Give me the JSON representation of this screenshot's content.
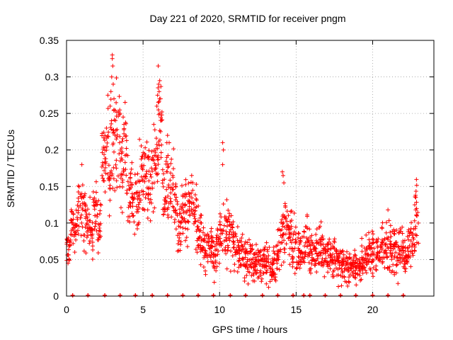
{
  "chart_data": {
    "type": "scatter",
    "title": "Day 221 of 2020, SRMTID for receiver pngm",
    "xlabel": "GPS time / hours",
    "ylabel": "SRMTID / TECUs",
    "xlim": [
      0,
      24
    ],
    "ylim": [
      0,
      0.35
    ],
    "grid": true,
    "marker": "+",
    "color": "#ff0000",
    "xticks": [
      {
        "value": 0,
        "label": "0"
      },
      {
        "value": 5,
        "label": "5"
      },
      {
        "value": 10,
        "label": "10"
      },
      {
        "value": 15,
        "label": "15"
      },
      {
        "value": 20,
        "label": "20"
      }
    ],
    "yticks": [
      {
        "value": 0,
        "label": "0"
      },
      {
        "value": 0.05,
        "label": "0.05"
      },
      {
        "value": 0.1,
        "label": "0.1"
      },
      {
        "value": 0.15,
        "label": "0.15"
      },
      {
        "value": 0.2,
        "label": "0.2"
      },
      {
        "value": 0.25,
        "label": "0.25"
      },
      {
        "value": 0.3,
        "label": "0.3"
      },
      {
        "value": 0.35,
        "label": "0.35"
      }
    ],
    "zero_markers_x": [
      0.4,
      1.4,
      2.5,
      3.5,
      4.5,
      5.6,
      6.6,
      7.6,
      8.6,
      9.6,
      10.7,
      11.7,
      12.8,
      13.8,
      14.8,
      15.5,
      15.9,
      16.9,
      17.9,
      18.9,
      20.0,
      21.0,
      22.0
    ],
    "profile": [
      [
        0.0,
        0.07,
        0.02
      ],
      [
        0.25,
        0.1,
        0.025
      ],
      [
        0.5,
        0.095,
        0.02
      ],
      [
        0.75,
        0.125,
        0.03
      ],
      [
        1.0,
        0.115,
        0.035
      ],
      [
        1.25,
        0.09,
        0.03
      ],
      [
        1.5,
        0.09,
        0.03
      ],
      [
        1.75,
        0.125,
        0.025
      ],
      [
        2.0,
        0.1,
        0.025
      ],
      [
        2.25,
        0.18,
        0.04
      ],
      [
        2.5,
        0.2,
        0.045
      ],
      [
        2.75,
        0.19,
        0.05
      ],
      [
        3.0,
        0.22,
        0.05
      ],
      [
        3.25,
        0.21,
        0.05
      ],
      [
        3.5,
        0.17,
        0.04
      ],
      [
        3.75,
        0.2,
        0.035
      ],
      [
        4.0,
        0.14,
        0.035
      ],
      [
        4.25,
        0.125,
        0.03
      ],
      [
        4.5,
        0.13,
        0.035
      ],
      [
        4.75,
        0.15,
        0.04
      ],
      [
        5.0,
        0.15,
        0.035
      ],
      [
        5.25,
        0.155,
        0.03
      ],
      [
        5.5,
        0.17,
        0.035
      ],
      [
        5.75,
        0.19,
        0.035
      ],
      [
        6.0,
        0.23,
        0.05
      ],
      [
        6.25,
        0.14,
        0.03
      ],
      [
        6.5,
        0.15,
        0.04
      ],
      [
        6.75,
        0.16,
        0.035
      ],
      [
        7.0,
        0.13,
        0.03
      ],
      [
        7.25,
        0.09,
        0.025
      ],
      [
        7.5,
        0.12,
        0.03
      ],
      [
        7.75,
        0.12,
        0.03
      ],
      [
        8.0,
        0.13,
        0.03
      ],
      [
        8.25,
        0.11,
        0.03
      ],
      [
        8.5,
        0.085,
        0.025
      ],
      [
        8.75,
        0.075,
        0.025
      ],
      [
        9.0,
        0.065,
        0.02
      ],
      [
        9.25,
        0.075,
        0.02
      ],
      [
        9.5,
        0.06,
        0.02
      ],
      [
        9.75,
        0.07,
        0.02
      ],
      [
        10.0,
        0.08,
        0.025
      ],
      [
        10.25,
        0.09,
        0.03
      ],
      [
        10.5,
        0.08,
        0.03
      ],
      [
        10.75,
        0.075,
        0.025
      ],
      [
        11.0,
        0.06,
        0.02
      ],
      [
        11.25,
        0.065,
        0.025
      ],
      [
        11.5,
        0.055,
        0.02
      ],
      [
        11.75,
        0.05,
        0.02
      ],
      [
        12.0,
        0.05,
        0.02
      ],
      [
        12.25,
        0.045,
        0.02
      ],
      [
        12.5,
        0.05,
        0.02
      ],
      [
        12.75,
        0.045,
        0.018
      ],
      [
        13.0,
        0.045,
        0.018
      ],
      [
        13.25,
        0.035,
        0.015
      ],
      [
        13.5,
        0.045,
        0.018
      ],
      [
        13.75,
        0.06,
        0.02
      ],
      [
        14.0,
        0.08,
        0.035
      ],
      [
        14.25,
        0.1,
        0.03
      ],
      [
        14.5,
        0.09,
        0.03
      ],
      [
        14.75,
        0.07,
        0.025
      ],
      [
        15.0,
        0.055,
        0.02
      ],
      [
        15.25,
        0.06,
        0.02
      ],
      [
        15.5,
        0.075,
        0.025
      ],
      [
        15.75,
        0.07,
        0.025
      ],
      [
        16.0,
        0.06,
        0.02
      ],
      [
        16.25,
        0.06,
        0.02
      ],
      [
        16.5,
        0.065,
        0.025
      ],
      [
        16.75,
        0.055,
        0.02
      ],
      [
        17.0,
        0.055,
        0.02
      ],
      [
        17.25,
        0.045,
        0.018
      ],
      [
        17.5,
        0.055,
        0.02
      ],
      [
        17.75,
        0.045,
        0.018
      ],
      [
        18.0,
        0.04,
        0.015
      ],
      [
        18.25,
        0.04,
        0.015
      ],
      [
        18.5,
        0.04,
        0.015
      ],
      [
        18.75,
        0.045,
        0.018
      ],
      [
        19.0,
        0.04,
        0.015
      ],
      [
        19.25,
        0.045,
        0.018
      ],
      [
        19.5,
        0.05,
        0.02
      ],
      [
        19.75,
        0.06,
        0.02
      ],
      [
        20.0,
        0.06,
        0.02
      ],
      [
        20.25,
        0.06,
        0.02
      ],
      [
        20.5,
        0.065,
        0.025
      ],
      [
        20.75,
        0.07,
        0.025
      ],
      [
        21.0,
        0.065,
        0.025
      ],
      [
        21.25,
        0.07,
        0.025
      ],
      [
        21.5,
        0.07,
        0.025
      ],
      [
        21.75,
        0.065,
        0.02
      ],
      [
        22.0,
        0.06,
        0.02
      ],
      [
        22.25,
        0.065,
        0.025
      ],
      [
        22.5,
        0.08,
        0.03
      ],
      [
        22.75,
        0.11,
        0.03
      ]
    ],
    "highlights": [
      [
        2.99,
        0.33
      ],
      [
        2.99,
        0.325
      ],
      [
        3.02,
        0.315
      ],
      [
        2.95,
        0.3
      ],
      [
        3.05,
        0.29
      ],
      [
        2.9,
        0.28
      ],
      [
        3.1,
        0.27
      ],
      [
        2.85,
        0.26
      ],
      [
        3.1,
        0.255
      ],
      [
        5.99,
        0.315
      ],
      [
        6.02,
        0.29
      ],
      [
        5.98,
        0.285
      ],
      [
        6.05,
        0.28
      ],
      [
        5.95,
        0.275
      ],
      [
        6.08,
        0.27
      ],
      [
        6.0,
        0.265
      ],
      [
        5.9,
        0.26
      ],
      [
        6.1,
        0.25
      ],
      [
        10.2,
        0.21
      ],
      [
        10.25,
        0.2
      ],
      [
        10.2,
        0.18
      ],
      [
        14.1,
        0.17
      ],
      [
        14.15,
        0.165
      ],
      [
        14.2,
        0.155
      ],
      [
        22.8,
        0.138
      ],
      [
        22.75,
        0.125
      ],
      [
        21.0,
        0.118
      ],
      [
        2.7,
        0.275
      ],
      [
        3.7,
        0.245
      ],
      [
        3.75,
        0.235
      ],
      [
        3.5,
        0.25
      ],
      [
        5.7,
        0.235
      ],
      [
        6.6,
        0.22
      ],
      [
        1.0,
        0.18
      ],
      [
        0.1,
        0.045
      ],
      [
        13.2,
        0.012
      ],
      [
        13.3,
        0.02
      ]
    ]
  }
}
